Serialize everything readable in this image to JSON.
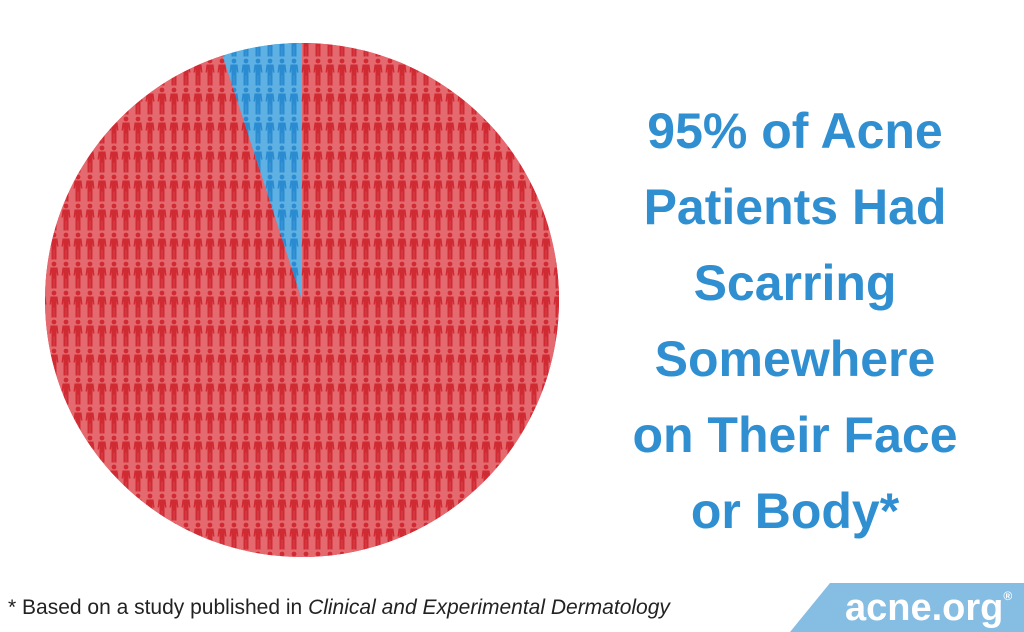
{
  "chart_data": {
    "type": "pie",
    "values": [
      95,
      5
    ],
    "colors": [
      "#d8343c",
      "#3597d6"
    ],
    "title_lines": [
      "95% of Acne",
      "Patients Had",
      "Scarring",
      "Somewhere",
      "on Their Face",
      "or Body*"
    ],
    "footnote": {
      "text": "* Based on a study published in",
      "source": "Clinical and Experimental Dermatology"
    },
    "logo": {
      "text": "acne.org",
      "mark": "®"
    }
  }
}
